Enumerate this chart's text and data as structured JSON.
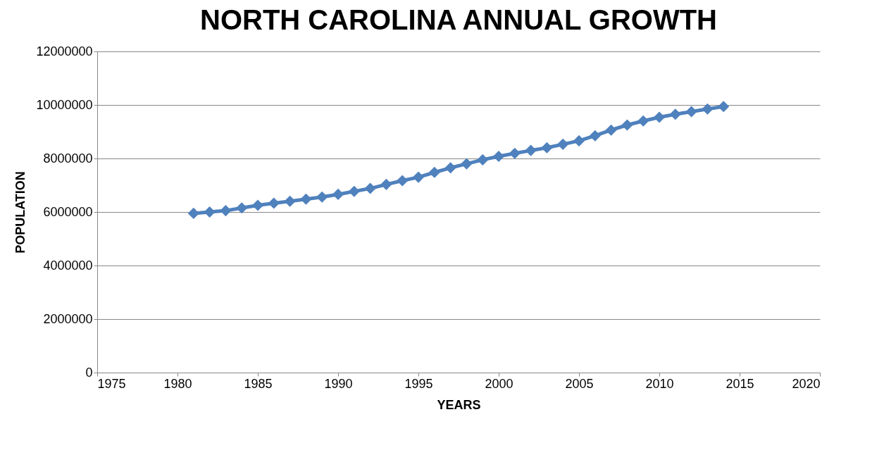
{
  "chart_data": {
    "type": "line",
    "title": "NORTH CAROLINA ANNUAL GROWTH",
    "xlabel": "YEARS",
    "ylabel": "POPULATION",
    "x": [
      1981,
      1982,
      1983,
      1984,
      1985,
      1986,
      1987,
      1988,
      1989,
      1990,
      1991,
      1992,
      1993,
      1994,
      1995,
      1996,
      1997,
      1998,
      1999,
      2000,
      2001,
      2002,
      2003,
      2004,
      2005,
      2006,
      2007,
      2008,
      2009,
      2010,
      2011,
      2012,
      2013,
      2014
    ],
    "series": [
      {
        "color": "#4f81bd",
        "values": [
          5950000,
          6000000,
          6050000,
          6150000,
          6250000,
          6330000,
          6400000,
          6480000,
          6560000,
          6660000,
          6770000,
          6880000,
          7030000,
          7170000,
          7300000,
          7480000,
          7650000,
          7800000,
          7950000,
          8080000,
          8190000,
          8300000,
          8400000,
          8530000,
          8660000,
          8850000,
          9060000,
          9250000,
          9400000,
          9540000,
          9650000,
          9750000,
          9850000,
          9940000
        ]
      }
    ],
    "xlim": [
      1975,
      2020
    ],
    "xticks": [
      1975,
      1980,
      1985,
      1990,
      1995,
      2000,
      2005,
      2010,
      2015,
      2020
    ],
    "ylim": [
      0,
      12000000
    ],
    "yticks": [
      0,
      2000000,
      4000000,
      6000000,
      8000000,
      10000000,
      12000000
    ],
    "grid": "y",
    "legend": false,
    "marker": "diamond",
    "line_style": "solid"
  }
}
